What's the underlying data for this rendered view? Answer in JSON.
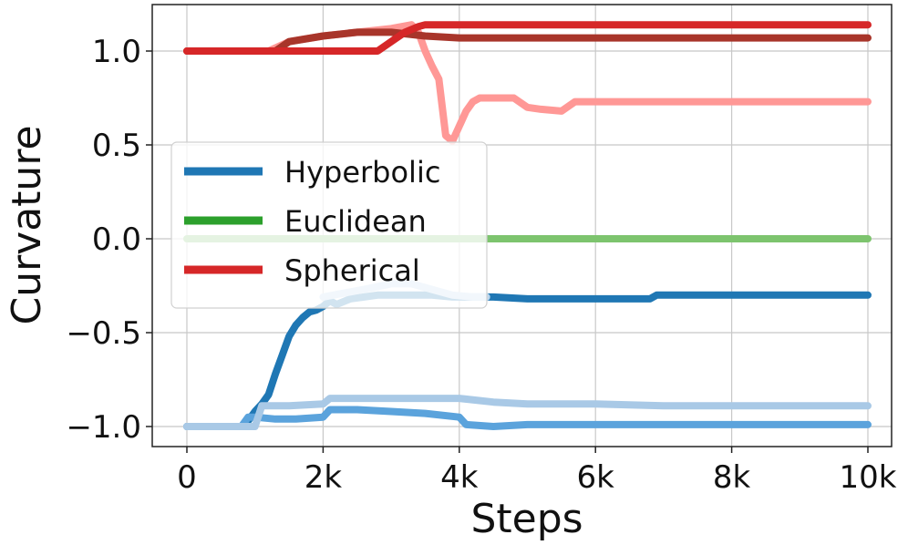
{
  "chart_data": {
    "type": "line",
    "xlabel": "Steps",
    "ylabel": "Curvature",
    "xlim": [
      -500,
      10000
    ],
    "ylim": [
      -1.1,
      1.25
    ],
    "grid": true,
    "legend_placement": "center-left",
    "x_ticks": [
      {
        "value": 0,
        "label": "0"
      },
      {
        "value": 2000,
        "label": "2k"
      },
      {
        "value": 4000,
        "label": "4k"
      },
      {
        "value": 6000,
        "label": "6k"
      },
      {
        "value": 8000,
        "label": "8k"
      },
      {
        "value": 10000,
        "label": "10k"
      }
    ],
    "y_ticks": [
      {
        "value": -1.0,
        "label": "−1.0"
      },
      {
        "value": -0.5,
        "label": "−0.5"
      },
      {
        "value": 0.0,
        "label": "0.0"
      },
      {
        "value": 0.5,
        "label": "0.5"
      },
      {
        "value": 1.0,
        "label": "1.0"
      }
    ],
    "legend": [
      {
        "label": "Hyperbolic",
        "color": "#1f77b4"
      },
      {
        "label": "Euclidean",
        "color": "#2ca02c"
      },
      {
        "label": "Spherical",
        "color": "#d62728"
      }
    ],
    "series": [
      {
        "group": "Hyperbolic",
        "color": "#1f77b4",
        "x": [
          0,
          800,
          900,
          1000,
          1100,
          1200,
          1300,
          1400,
          1500,
          1600,
          1700,
          1800,
          1900,
          2000,
          2100,
          2200,
          2400,
          2600,
          2800,
          3000,
          3300,
          3600,
          3900,
          4200,
          4500,
          5000,
          5500,
          6000,
          6800,
          6900,
          10000
        ],
        "y": [
          -1.0,
          -1.0,
          -0.97,
          -0.92,
          -0.88,
          -0.83,
          -0.72,
          -0.62,
          -0.52,
          -0.46,
          -0.42,
          -0.39,
          -0.38,
          -0.36,
          -0.33,
          -0.35,
          -0.32,
          -0.31,
          -0.3,
          -0.3,
          -0.3,
          -0.3,
          -0.31,
          -0.31,
          -0.31,
          -0.32,
          -0.32,
          -0.32,
          -0.32,
          -0.3,
          -0.3
        ]
      },
      {
        "group": "Hyperbolic",
        "color": "#5ba3dc",
        "x": [
          0,
          800,
          900,
          1000,
          1300,
          1600,
          2000,
          2100,
          2500,
          3000,
          3500,
          4000,
          4100,
          4500,
          5000,
          10000
        ],
        "y": [
          -1.0,
          -1.0,
          -0.95,
          -0.95,
          -0.96,
          -0.96,
          -0.95,
          -0.91,
          -0.91,
          -0.92,
          -0.93,
          -0.95,
          -0.99,
          -1.0,
          -0.99,
          -0.99
        ]
      },
      {
        "group": "Hyperbolic",
        "color": "#a9c9e6",
        "x": [
          0,
          1000,
          1100,
          1500,
          2000,
          2100,
          2500,
          3000,
          4000,
          4500,
          5000,
          6000,
          7000,
          10000
        ],
        "y": [
          -1.0,
          -1.0,
          -0.89,
          -0.89,
          -0.88,
          -0.85,
          -0.85,
          -0.85,
          -0.85,
          -0.87,
          -0.88,
          -0.88,
          -0.89,
          -0.89
        ]
      },
      {
        "group": "Hyperbolic",
        "color": "#bdd7ee",
        "x": [
          2000,
          2300,
          2600,
          3000,
          3300,
          3600,
          3900,
          4200,
          4400
        ],
        "y": [
          -0.31,
          -0.29,
          -0.27,
          -0.24,
          -0.24,
          -0.27,
          -0.3,
          -0.31,
          -0.31
        ]
      },
      {
        "group": "Euclidean",
        "color": "#7dc46e",
        "x": [
          0,
          10000
        ],
        "y": [
          0.0,
          0.0
        ]
      },
      {
        "group": "Spherical",
        "color": "#ff9896",
        "x": [
          0,
          1200,
          1500,
          2000,
          2500,
          3000,
          3300,
          3400,
          3500,
          3600,
          3700,
          3800,
          3900,
          4000,
          4100,
          4200,
          4300,
          4400,
          4800,
          5000,
          5200,
          5500,
          5700,
          6000,
          10000
        ],
        "y": [
          1.0,
          1.0,
          1.05,
          1.08,
          1.1,
          1.12,
          1.14,
          1.1,
          1.0,
          0.92,
          0.85,
          0.55,
          0.52,
          0.6,
          0.68,
          0.73,
          0.75,
          0.75,
          0.75,
          0.7,
          0.69,
          0.68,
          0.73,
          0.73,
          0.73
        ]
      },
      {
        "group": "Spherical",
        "color": "#a8352a",
        "x": [
          0,
          1300,
          1500,
          2000,
          2500,
          3000,
          3500,
          4000,
          10000
        ],
        "y": [
          1.0,
          1.0,
          1.05,
          1.08,
          1.1,
          1.1,
          1.08,
          1.07,
          1.07
        ]
      },
      {
        "group": "Spherical",
        "color": "#d62728",
        "x": [
          0,
          2800,
          3000,
          3200,
          3400,
          3500,
          10000
        ],
        "y": [
          1.0,
          1.0,
          1.05,
          1.1,
          1.13,
          1.14,
          1.14
        ]
      }
    ]
  }
}
